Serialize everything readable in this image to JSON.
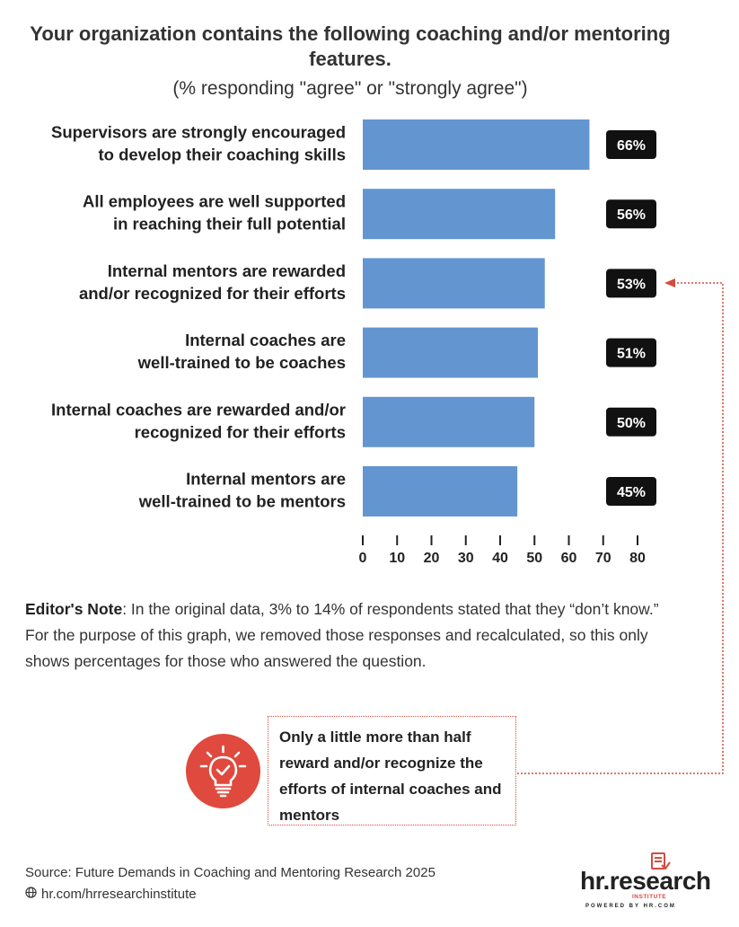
{
  "header": {
    "title_line1": "Your organization contains the following coaching and/or mentoring",
    "title_line2": "features.",
    "subtitle": "(% responding \"agree\" or \"strongly agree\")"
  },
  "chart_data": {
    "type": "bar",
    "orientation": "horizontal",
    "categories": [
      [
        "Supervisors are strongly encouraged",
        "to develop their coaching skills"
      ],
      [
        "All employees are well supported",
        "in reaching their full potential"
      ],
      [
        "Internal mentors are rewarded",
        "and/or recognized for their efforts"
      ],
      [
        "Internal coaches are",
        "well-trained to be coaches"
      ],
      [
        "Internal coaches are rewarded and/or",
        "recognized for their efforts"
      ],
      [
        "Internal mentors are",
        "well-trained to be mentors"
      ]
    ],
    "values": [
      66,
      56,
      53,
      51,
      50,
      45
    ],
    "data_labels": [
      "66%",
      "56%",
      "53%",
      "51%",
      "50%",
      "45%"
    ],
    "xlim": [
      0,
      80
    ],
    "xticks": [
      0,
      10,
      20,
      30,
      40,
      50,
      60,
      70,
      80
    ],
    "bar_color": "#6396d0",
    "label_bg_color": "#111111",
    "grid": false,
    "highlighted_index": 2
  },
  "editor_note": {
    "label": "Editor's Note",
    "text": ": In the original data, 3% to 14% of respondents stated that they “don’t know.” For the purpose of this graph, we removed those responses and recalculated, so this only shows percentages for those who answered the question."
  },
  "callout": {
    "text": "Only a little more than half reward and/or recognize the efforts of internal coaches and mentors",
    "icon": "lightbulb-icon",
    "accent_color": "#e0493d"
  },
  "footer": {
    "source": "Source:  Future Demands in Coaching and Mentoring Research 2025",
    "url": "hr.com/hrresearchinstitute",
    "url_icon": "globe-icon"
  },
  "logo": {
    "main": "hr.research",
    "sub": "INSTITUTE",
    "powered": "POWERED BY HR.COM"
  }
}
